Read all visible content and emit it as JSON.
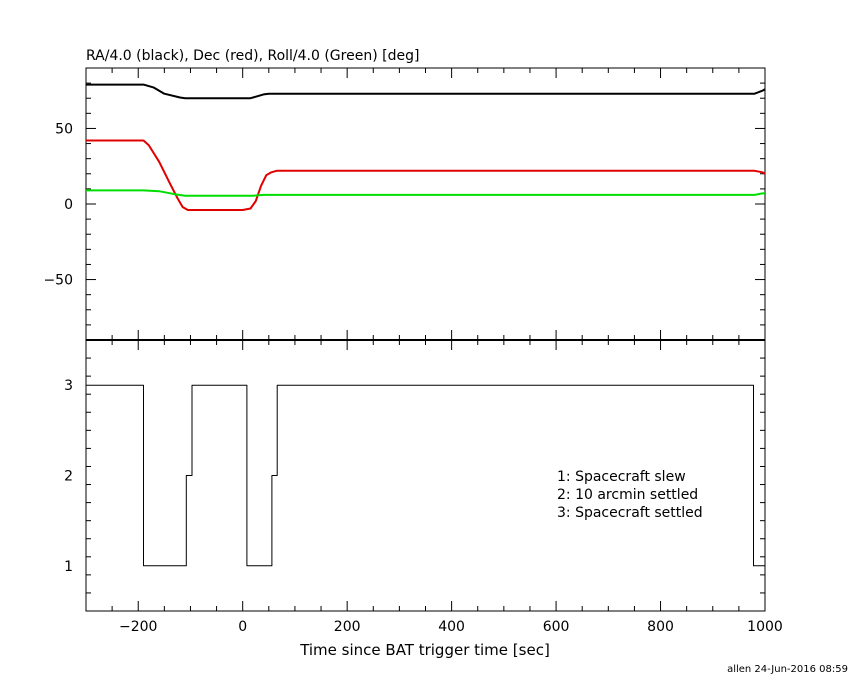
{
  "title": "RA/4.0 (black), Dec (red), Roll/4.0 (Green) [deg]",
  "xlabel": "Time since BAT trigger time [sec]",
  "footer": "allen 24-Jun-2016 08:59",
  "legend": [
    "1: Spacecraft slew",
    "2: 10 arcmin settled",
    "3: Spacecraft settled"
  ],
  "colors": {
    "ra": "#000000",
    "dec": "#e00000",
    "roll": "#00dd00",
    "axis": "#000000"
  },
  "chart_data": [
    {
      "type": "line",
      "title": "RA/4.0 (black), Dec (red), Roll/4.0 (Green) [deg]",
      "xlim": [
        -300,
        1000
      ],
      "ylim": [
        -90,
        90
      ],
      "xticks": [
        -200,
        0,
        200,
        400,
        600,
        800,
        1000
      ],
      "yticks": [
        -50,
        0,
        50
      ],
      "ytick_labels": [
        "−50",
        "0",
        "50"
      ],
      "series": [
        {
          "name": "RA/4.0",
          "color": "#000000",
          "x": [
            -300,
            -190,
            -170,
            -150,
            -120,
            -110,
            -80,
            0,
            15,
            25,
            40,
            50,
            360,
            980,
            995,
            1000
          ],
          "y": [
            79,
            79,
            77,
            73,
            70.5,
            70,
            70,
            70,
            70,
            71,
            72.5,
            73,
            73,
            73,
            75,
            76
          ]
        },
        {
          "name": "Dec",
          "color": "#e00000",
          "x": [
            -300,
            -190,
            -180,
            -160,
            -140,
            -125,
            -115,
            -105,
            0,
            15,
            25,
            35,
            45,
            55,
            65,
            360,
            980,
            995,
            1000
          ],
          "y": [
            42,
            42,
            39,
            28,
            14,
            4,
            -2,
            -4,
            -4,
            -3,
            2,
            12,
            19,
            21,
            22,
            22,
            22,
            21,
            20
          ]
        },
        {
          "name": "Roll/4.0",
          "color": "#00dd00",
          "x": [
            -300,
            -190,
            -160,
            -130,
            -110,
            0,
            20,
            40,
            50,
            360,
            980,
            995,
            1000
          ],
          "y": [
            9,
            9,
            8.5,
            6.5,
            5.5,
            5.5,
            5.5,
            6,
            6,
            6,
            6,
            7,
            7
          ]
        }
      ]
    },
    {
      "type": "line",
      "xlabel": "Time since BAT trigger time [sec]",
      "xlim": [
        -300,
        1000
      ],
      "ylim": [
        0.5,
        3.5
      ],
      "xticks": [
        -200,
        0,
        200,
        400,
        600,
        800,
        1000
      ],
      "xtick_labels": [
        "−200",
        "0",
        "200",
        "400",
        "600",
        "800",
        "1000"
      ],
      "yticks": [
        1,
        2,
        3
      ],
      "series": [
        {
          "name": "",
          "x": [
            -300,
            -190,
            -190,
            -108,
            -108,
            -97,
            -97,
            8,
            8,
            56,
            56,
            66,
            66,
            978,
            978,
            1000
          ],
          "y": [
            3,
            3,
            1,
            1,
            2,
            2,
            3,
            3,
            1,
            1,
            2,
            2,
            3,
            3,
            1,
            1
          ]
        }
      ]
    }
  ]
}
